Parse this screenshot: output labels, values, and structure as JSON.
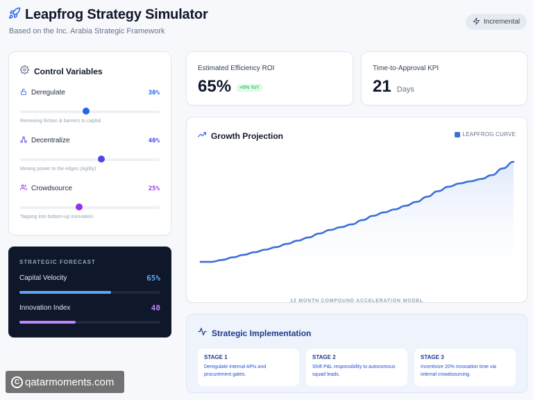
{
  "header": {
    "title": "Leapfrog Strategy Simulator",
    "subtitle": "Based on the Inc. Arabia Strategic Framework",
    "mode_label": "Incremental"
  },
  "controls": {
    "title": "Control Variables",
    "variables": [
      {
        "name": "Deregulate",
        "value_label": "30%",
        "value": 0.3,
        "description": "Removing friction & barriers to capital",
        "color": "#2563eb",
        "icon": "lock-open-icon"
      },
      {
        "name": "Decentralize",
        "value_label": "40%",
        "value": 0.4,
        "description": "Moving power to the edges (Agility)",
        "color": "#4f46e5",
        "icon": "network-icon"
      },
      {
        "name": "Crowdsource",
        "value_label": "25%",
        "value": 0.25,
        "description": "Tapping into bottom-up innovation",
        "color": "#9333ea",
        "icon": "users-icon"
      }
    ]
  },
  "forecast": {
    "title": "STRATEGIC FORECAST",
    "metrics": [
      {
        "name": "Capital Velocity",
        "value_label": "65%",
        "fill": 0.65,
        "color": "#60a5fa"
      },
      {
        "name": "Innovation Index",
        "value_label": "40",
        "fill": 0.4,
        "color": "#c084fc"
      }
    ]
  },
  "kpis": {
    "roi": {
      "label": "Estimated Efficiency ROI",
      "value": "65%",
      "badge": "+6% YoY"
    },
    "approval": {
      "label": "Time-to-Approval KPI",
      "value": "21",
      "unit": "Days"
    }
  },
  "chart": {
    "title": "Growth Projection",
    "legend": "LEAPFROG CURVE",
    "caption": "12 MONTH COMPOUND ACCELERATION MODEL"
  },
  "chart_data": {
    "type": "area",
    "title": "Growth Projection",
    "series": [
      {
        "name": "LEAPFROG CURVE",
        "color": "#3b6fd8",
        "values": [
          3,
          3,
          12,
          24,
          36,
          48,
          60,
          72,
          87,
          102,
          117,
          135,
          152,
          165,
          178,
          198,
          218,
          234,
          248,
          265,
          283,
          307,
          333,
          354,
          369,
          379,
          390,
          408,
          439,
          470
        ]
      }
    ],
    "grid": false
  },
  "implementation": {
    "title": "Strategic Implementation",
    "stages": [
      {
        "title": "STAGE 1",
        "line1": "Deregulate internal APIs and",
        "line2": "procurement gates."
      },
      {
        "title": "STAGE 2",
        "line1": "Shift P&L responsibility to autonomous",
        "line2": "squad leads."
      },
      {
        "title": "STAGE 3",
        "line1": "Incentivize 20% innovation time via",
        "line2": "internal crowdsourcing."
      }
    ]
  },
  "watermark": {
    "symbol": "C",
    "text": "qatarmoments.com"
  }
}
